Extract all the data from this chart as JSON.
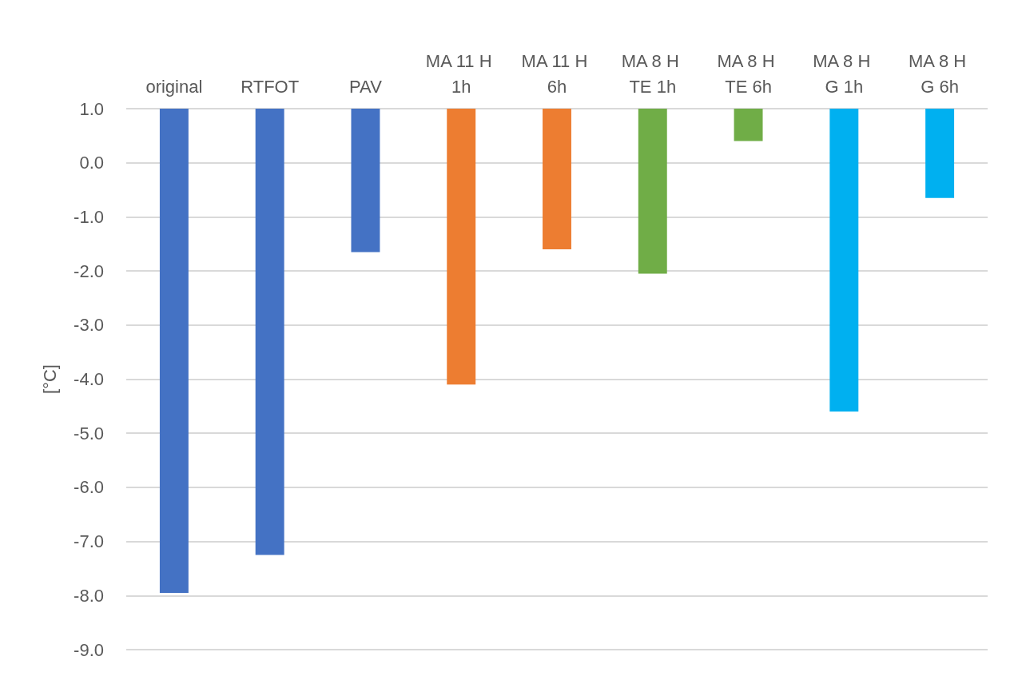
{
  "chart_data": {
    "type": "bar",
    "ylabel": "[°C]",
    "categories": [
      "original",
      "RTFOT",
      "PAV",
      "MA 11 H 1h",
      "MA 11 H 6h",
      "MA 8 H TE 1h",
      "MA 8 H TE 6h",
      "MA 8 H G 1h",
      "MA 8 H G 6h"
    ],
    "base": [
      1,
      1,
      1,
      1,
      1,
      1,
      1,
      1,
      1
    ],
    "values": [
      -8.95,
      -8.25,
      -2.65,
      -5.1,
      -2.6,
      -3.05,
      -0.6,
      -5.6,
      -1.65
    ],
    "colors": [
      "#4472c4",
      "#4472c4",
      "#4472c4",
      "#ed7d31",
      "#ed7d31",
      "#70ad47",
      "#70ad47",
      "#00b0f0",
      "#00b0f0"
    ],
    "ylim": [
      -9,
      1
    ],
    "yticks": [
      {
        "value": -9,
        "label": "-9.0"
      },
      {
        "value": -8,
        "label": "-8.0"
      },
      {
        "value": -7,
        "label": "-7.0"
      },
      {
        "value": -6,
        "label": "-6.0"
      },
      {
        "value": -5,
        "label": "-5.0"
      },
      {
        "value": -4,
        "label": "-4.0"
      },
      {
        "value": -3,
        "label": "-3.0"
      },
      {
        "value": -2,
        "label": "-2.0"
      },
      {
        "value": -1,
        "label": "-1.0"
      },
      {
        "value": 0,
        "label": "0.0"
      },
      {
        "value": 1,
        "label": "1.0"
      }
    ],
    "grid": "y"
  }
}
